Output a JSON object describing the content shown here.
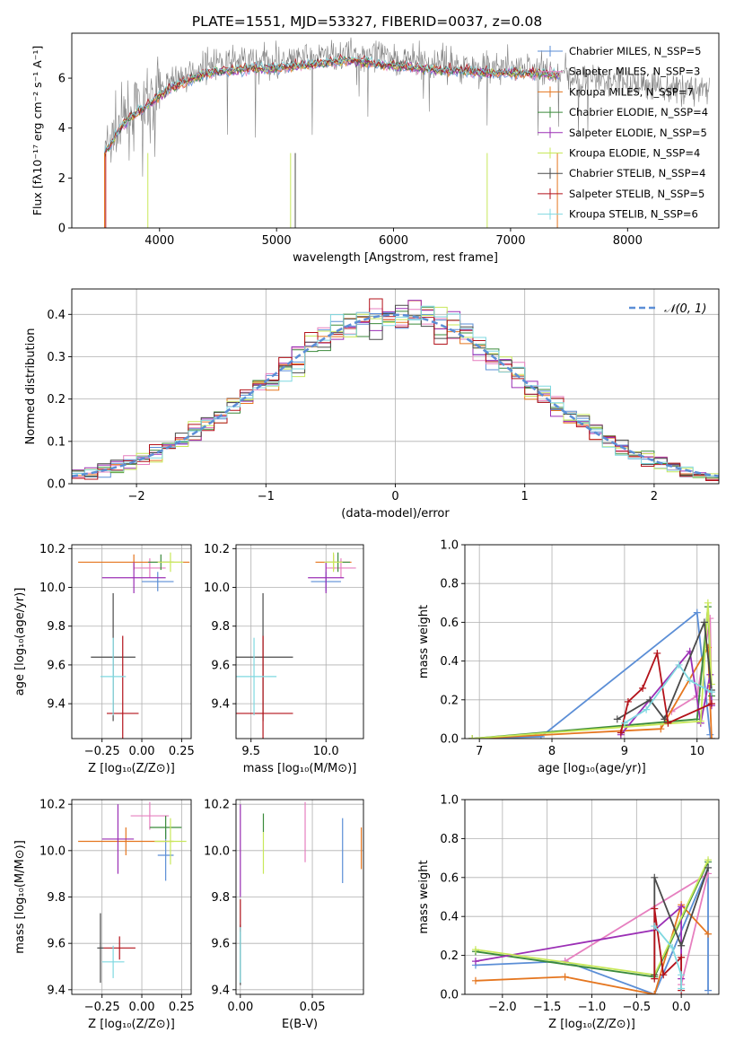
{
  "chart_data": [
    {
      "id": "spectrum",
      "type": "line",
      "title": "PLATE=1551, MJD=53327, FIBERID=0037, z=0.08",
      "xlabel": "wavelength [Angstrom, rest frame]",
      "ylabel": "Flux [fλ10⁻¹⁷ erg cm⁻² s⁻¹ A⁻¹]",
      "xlim": [
        3250,
        8780
      ],
      "ylim": [
        0,
        7.8
      ],
      "xticks": [
        4000,
        5000,
        6000,
        7000,
        8000
      ],
      "yticks": [
        0,
        2,
        4,
        6
      ],
      "grid": false,
      "legend_position": "right",
      "data_continuum": {
        "x": [
          3530,
          3600,
          3700,
          3800,
          3900,
          4000,
          4100,
          4200,
          4300,
          4400,
          4600,
          4800,
          5000,
          5200,
          5400,
          5600,
          5800,
          6000,
          6200,
          6400,
          6600,
          6800,
          7000,
          7200,
          7400,
          7600,
          7800,
          8000,
          8200,
          8400,
          8600,
          8700
        ],
        "y": [
          3.0,
          3.6,
          4.3,
          4.8,
          5.0,
          5.6,
          5.9,
          6.1,
          6.3,
          6.5,
          6.6,
          6.7,
          6.6,
          6.8,
          6.9,
          7.0,
          6.9,
          6.8,
          6.7,
          6.6,
          6.5,
          6.4,
          6.4,
          6.4,
          6.2,
          6.0,
          5.9,
          5.8,
          5.7,
          5.6,
          5.6,
          5.5
        ]
      },
      "model_continuum": {
        "x": [
          3530,
          3600,
          3700,
          3800,
          3900,
          4000,
          4100,
          4200,
          4300,
          4400,
          4600,
          4800,
          5000,
          5200,
          5400,
          5600,
          5800,
          6000,
          6200,
          6400,
          6600,
          6800,
          7000,
          7200,
          7400
        ],
        "y": [
          3.0,
          3.5,
          4.2,
          4.6,
          4.9,
          5.3,
          5.6,
          5.8,
          6.0,
          6.2,
          6.3,
          6.4,
          6.4,
          6.5,
          6.6,
          6.7,
          6.6,
          6.5,
          6.4,
          6.3,
          6.3,
          6.2,
          6.2,
          6.2,
          6.1
        ]
      },
      "series": [
        {
          "name": "Chabrier MILES, N_SSP=5",
          "color": "#5b8ed6"
        },
        {
          "name": "Salpeter MILES, N_SSP=3",
          "color": "#e67fbf"
        },
        {
          "name": "Kroupa MILES, N_SSP=7",
          "color": "#e5761f"
        },
        {
          "name": "Chabrier ELODIE, N_SSP=4",
          "color": "#3a8a3a"
        },
        {
          "name": "Salpeter ELODIE, N_SSP=5",
          "color": "#9b2fb5"
        },
        {
          "name": "Kroupa ELODIE, N_SSP=4",
          "color": "#c8e85a"
        },
        {
          "name": "Chabrier STELIB, N_SSP=4",
          "color": "#4a4a4a"
        },
        {
          "name": "Salpeter STELIB, N_SSP=5",
          "color": "#b3121a"
        },
        {
          "name": "Kroupa STELIB, N_SSP=6",
          "color": "#7fd8e0"
        }
      ],
      "data_color": "#808080"
    },
    {
      "id": "residuals",
      "type": "line",
      "title": "",
      "xlabel": "(data-model)/error",
      "ylabel": "Normed distribution",
      "xlim": [
        -2.5,
        2.5
      ],
      "ylim": [
        0,
        0.46
      ],
      "xticks": [
        -2,
        -1,
        0,
        1,
        2
      ],
      "yticks": [
        0.0,
        0.1,
        0.2,
        0.3,
        0.4
      ],
      "grid": true,
      "legend_position": "top-right",
      "legend": "𝒩(0, 1)",
      "gaussian_color": "#5b8ed6"
    },
    {
      "id": "age_vs_Z",
      "type": "scatter",
      "xlabel": "Z [log₁₀(Z/Z⊙)]",
      "ylabel": "age  [log₁₀(age/yr)]",
      "xlim": [
        -0.44,
        0.31
      ],
      "ylim": [
        9.22,
        10.22
      ],
      "xticks": [
        -0.25,
        0.0,
        0.25
      ],
      "yticks": [
        9.4,
        9.6,
        9.8,
        10.0,
        10.2
      ],
      "grid": true,
      "points": [
        {
          "series": 0,
          "x": 0.1,
          "y": 10.03,
          "xerr": 0.1,
          "yerr": 0.05
        },
        {
          "series": 1,
          "x": 0.05,
          "y": 10.1,
          "xerr": 0.1,
          "yerr": 0.05
        },
        {
          "series": 2,
          "x": -0.05,
          "y": 10.13,
          "xerr": 0.35,
          "yerr": 0.04
        },
        {
          "series": 3,
          "x": 0.12,
          "y": 10.13,
          "xerr": 0.08,
          "yerr": 0.04
        },
        {
          "series": 4,
          "x": -0.05,
          "y": 10.05,
          "xerr": 0.2,
          "yerr": 0.08
        },
        {
          "series": 5,
          "x": 0.18,
          "y": 10.13,
          "xerr": 0.08,
          "yerr": 0.05
        },
        {
          "series": 6,
          "x": -0.18,
          "y": 9.64,
          "xerr": 0.14,
          "yerr": 0.33
        },
        {
          "series": 7,
          "x": -0.12,
          "y": 9.35,
          "xerr": 0.1,
          "yerr": 0.4
        },
        {
          "series": 8,
          "x": -0.18,
          "y": 9.54,
          "xerr": 0.08,
          "yerr": 0.2
        }
      ]
    },
    {
      "id": "age_vs_mass",
      "type": "scatter",
      "xlabel": "mass [log₁₀(M/M⊙)]",
      "ylabel": "",
      "xlim": [
        9.4,
        10.25
      ],
      "ylim": [
        9.22,
        10.22
      ],
      "xticks": [
        9.5,
        10.0
      ],
      "yticks": [
        9.4,
        9.6,
        9.8,
        10.0,
        10.2
      ],
      "grid": true,
      "points": [
        {
          "series": 0,
          "x": 10.0,
          "y": 10.03,
          "xerr": 0.1,
          "yerr": 0.05
        },
        {
          "series": 1,
          "x": 10.1,
          "y": 10.1,
          "xerr": 0.1,
          "yerr": 0.05
        },
        {
          "series": 2,
          "x": 10.05,
          "y": 10.13,
          "xerr": 0.12,
          "yerr": 0.04
        },
        {
          "series": 3,
          "x": 10.08,
          "y": 10.13,
          "xerr": 0.08,
          "yerr": 0.05
        },
        {
          "series": 4,
          "x": 10.0,
          "y": 10.05,
          "xerr": 0.12,
          "yerr": 0.08
        },
        {
          "series": 5,
          "x": 10.05,
          "y": 10.13,
          "xerr": 0.06,
          "yerr": 0.05
        },
        {
          "series": 6,
          "x": 9.58,
          "y": 9.64,
          "xerr": 0.2,
          "yerr": 0.33
        },
        {
          "series": 7,
          "x": 9.58,
          "y": 9.35,
          "xerr": 0.2,
          "yerr": 0.4
        },
        {
          "series": 8,
          "x": 9.52,
          "y": 9.54,
          "xerr": 0.15,
          "yerr": 0.2
        }
      ]
    },
    {
      "id": "weight_vs_age",
      "type": "line",
      "xlabel": "age  [log₁₀(age/yr)]",
      "ylabel": "mass weight",
      "xlim": [
        6.8,
        10.3
      ],
      "ylim": [
        0,
        1.0
      ],
      "xticks": [
        7,
        8,
        9,
        10
      ],
      "yticks": [
        0.0,
        0.2,
        0.4,
        0.6,
        0.8,
        1.0
      ],
      "grid": true,
      "lines": [
        {
          "series": 0,
          "x": [
            6.9,
            7.85,
            10.0,
            10.18,
            10.2
          ],
          "y": [
            0.0,
            0.01,
            0.65,
            0.02,
            0.0
          ]
        },
        {
          "series": 1,
          "x": [
            9.65,
            10.0,
            10.18,
            10.2
          ],
          "y": [
            0.14,
            0.22,
            0.62,
            0.18
          ]
        },
        {
          "series": 2,
          "x": [
            6.9,
            9.5,
            10.15,
            10.2
          ],
          "y": [
            0.0,
            0.05,
            0.47,
            0.0
          ]
        },
        {
          "series": 3,
          "x": [
            6.9,
            10.0,
            10.15,
            10.2
          ],
          "y": [
            0.0,
            0.1,
            0.68,
            0.22
          ]
        },
        {
          "series": 4,
          "x": [
            8.95,
            9.9,
            10.05,
            10.18,
            10.2
          ],
          "y": [
            0.02,
            0.45,
            0.08,
            0.33,
            0.17
          ]
        },
        {
          "series": 5,
          "x": [
            6.9,
            10.05,
            10.15,
            10.2
          ],
          "y": [
            0.0,
            0.09,
            0.7,
            0.28
          ]
        },
        {
          "series": 6,
          "x": [
            8.9,
            9.35,
            9.55,
            10.1,
            10.2
          ],
          "y": [
            0.1,
            0.2,
            0.1,
            0.6,
            0.25
          ]
        },
        {
          "series": 7,
          "x": [
            8.95,
            9.05,
            9.25,
            9.45,
            9.6,
            10.2
          ],
          "y": [
            0.03,
            0.19,
            0.26,
            0.44,
            0.08,
            0.18
          ]
        },
        {
          "series": 8,
          "x": [
            9.0,
            9.3,
            9.75,
            9.9,
            10.2
          ],
          "y": [
            0.08,
            0.15,
            0.38,
            0.3,
            0.24
          ]
        }
      ]
    },
    {
      "id": "mass_vs_Z",
      "type": "scatter",
      "xlabel": "Z [log₁₀(Z/Z⊙)]",
      "ylabel": "mass [log₁₀(M/M⊙)]",
      "xlim": [
        -0.44,
        0.31
      ],
      "ylim": [
        9.38,
        10.22
      ],
      "xticks": [
        -0.25,
        0.0,
        0.25
      ],
      "yticks": [
        9.4,
        9.6,
        9.8,
        10.0,
        10.2
      ],
      "grid": true,
      "points": [
        {
          "series": 0,
          "x": 0.15,
          "y": 9.98,
          "xerr": 0.05,
          "yerr": 0.11
        },
        {
          "series": 1,
          "x": 0.05,
          "y": 10.15,
          "xerr": 0.12,
          "yerr": 0.06
        },
        {
          "series": 2,
          "x": -0.1,
          "y": 10.04,
          "xerr": 0.3,
          "yerr": 0.06
        },
        {
          "series": 3,
          "x": 0.15,
          "y": 10.1,
          "xerr": 0.1,
          "yerr": 0.05
        },
        {
          "series": 4,
          "x": -0.15,
          "y": 10.05,
          "xerr": 0.1,
          "yerr": 0.15
        },
        {
          "series": 5,
          "x": 0.18,
          "y": 10.04,
          "xerr": 0.1,
          "yerr": 0.1
        },
        {
          "series": 6,
          "x": -0.26,
          "y": 9.58,
          "xerr": 0.02,
          "yerr": 0.15
        },
        {
          "series": 7,
          "x": -0.14,
          "y": 9.58,
          "xerr": 0.1,
          "yerr": 0.05
        },
        {
          "series": 8,
          "x": -0.18,
          "y": 9.52,
          "xerr": 0.07,
          "yerr": 0.07
        }
      ]
    },
    {
      "id": "mass_vs_ebv",
      "type": "scatter",
      "xlabel": "E(B-V)",
      "ylabel": "",
      "xlim": [
        -0.003,
        0.0855
      ],
      "ylim": [
        9.38,
        10.22
      ],
      "xticks": [
        0.0,
        0.05
      ],
      "yticks": [
        9.4,
        9.6,
        9.8,
        10.0,
        10.2
      ],
      "grid": true,
      "points": [
        {
          "series": 0,
          "x": 0.071,
          "y": 10.0,
          "xerr": 0,
          "yerr": 0.14
        },
        {
          "series": 1,
          "x": 0.045,
          "y": 10.08,
          "xerr": 0,
          "yerr": 0.13
        },
        {
          "series": 2,
          "x": 0.084,
          "y": 10.01,
          "xerr": 0,
          "yerr": 0.09
        },
        {
          "series": 3,
          "x": 0.016,
          "y": 10.12,
          "xerr": 0,
          "yerr": 0.04
        },
        {
          "series": 4,
          "x": 0.0,
          "y": 10.0,
          "xerr": 0,
          "yerr": 0.2
        },
        {
          "series": 5,
          "x": 0.016,
          "y": 9.99,
          "xerr": 0,
          "yerr": 0.09
        },
        {
          "series": 6,
          "x": 0.0,
          "y": 9.55,
          "xerr": 0,
          "yerr": 0.13
        },
        {
          "series": 7,
          "x": 0.0,
          "y": 9.72,
          "xerr": 0,
          "yerr": 0.07
        },
        {
          "series": 8,
          "x": 0.0,
          "y": 9.55,
          "xerr": 0,
          "yerr": 0.12
        }
      ]
    },
    {
      "id": "weight_vs_Z",
      "type": "line",
      "xlabel": "Z [log₁₀(Z/Z⊙)]",
      "ylabel": "mass weight",
      "xlim": [
        -2.42,
        0.42
      ],
      "ylim": [
        0,
        1.0
      ],
      "xticks": [
        -2.0,
        -1.5,
        -1.0,
        -0.5,
        0.0
      ],
      "yticks": [
        0.0,
        0.2,
        0.4,
        0.6,
        0.8,
        1.0
      ],
      "grid": true,
      "lines": [
        {
          "series": 0,
          "x": [
            -2.3,
            -1.3,
            -0.3,
            0.3,
            0.3
          ],
          "y": [
            0.15,
            0.17,
            0.0,
            0.65,
            0.02
          ]
        },
        {
          "series": 1,
          "x": [
            -1.3,
            0.3,
            0.0
          ],
          "y": [
            0.17,
            0.62,
            0.05
          ]
        },
        {
          "series": 2,
          "x": [
            -2.3,
            -1.3,
            -0.3,
            0.0,
            0.3
          ],
          "y": [
            0.07,
            0.09,
            0.0,
            0.46,
            0.31
          ]
        },
        {
          "series": 3,
          "x": [
            -2.3,
            -0.3,
            0.3
          ],
          "y": [
            0.22,
            0.09,
            0.68
          ]
        },
        {
          "series": 4,
          "x": [
            -2.3,
            -0.3,
            0.0,
            0.0
          ],
          "y": [
            0.17,
            0.33,
            0.45,
            0.08
          ]
        },
        {
          "series": 5,
          "x": [
            -2.3,
            -0.3,
            0.3
          ],
          "y": [
            0.23,
            0.1,
            0.69
          ]
        },
        {
          "series": 6,
          "x": [
            -0.3,
            -0.3,
            0.0,
            0.3
          ],
          "y": [
            0.1,
            0.6,
            0.25,
            0.65
          ]
        },
        {
          "series": 7,
          "x": [
            -0.3,
            -0.3,
            -0.2,
            0.0,
            0.0
          ],
          "y": [
            0.08,
            0.44,
            0.1,
            0.19,
            0.02
          ]
        },
        {
          "series": 8,
          "x": [
            -0.3,
            -0.1,
            0.0,
            0.0
          ],
          "y": [
            0.35,
            0.24,
            0.1,
            0.03
          ]
        }
      ]
    }
  ]
}
